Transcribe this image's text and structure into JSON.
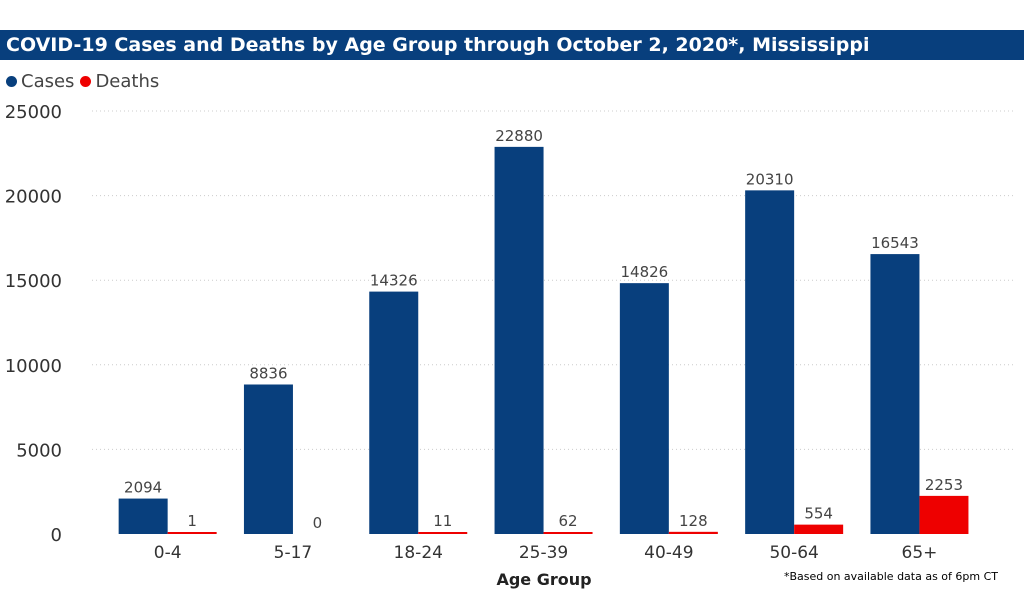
{
  "chart_data": {
    "type": "bar",
    "title": "COVID-19 Cases and Deaths by Age Group through October 2, 2020*, Mississippi",
    "xlabel": "Age Group",
    "ylabel": "",
    "ylim": [
      0,
      25000
    ],
    "yticks": [
      0,
      5000,
      10000,
      15000,
      20000,
      25000
    ],
    "grid": true,
    "legend_position": "top-left",
    "categories": [
      "0-4",
      "5-17",
      "18-24",
      "25-39",
      "40-49",
      "50-64",
      "65+"
    ],
    "series": [
      {
        "name": "Cases",
        "color": "#083F7D",
        "values": [
          2094,
          8836,
          14326,
          22880,
          14826,
          20310,
          16543
        ]
      },
      {
        "name": "Deaths",
        "color": "#EE0000",
        "values": [
          1,
          0,
          11,
          62,
          128,
          554,
          2253
        ]
      }
    ],
    "footnote": "*Based on available data as of 6pm CT"
  }
}
